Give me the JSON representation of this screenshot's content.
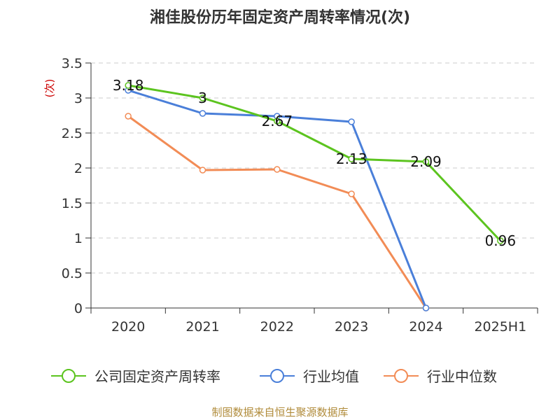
{
  "chart_data": {
    "type": "line",
    "title": "湘佳股份历年固定资产周转率情况(次)",
    "ylabel": "(次)",
    "xlabel": "",
    "categories": [
      "2020",
      "2021",
      "2022",
      "2023",
      "2024",
      "2025H1"
    ],
    "ylim": [
      0,
      3.5
    ],
    "yticks": [
      0,
      0.5,
      1,
      1.5,
      2,
      2.5,
      3,
      3.5
    ],
    "ytick_labels": [
      "0",
      "0.5",
      "1",
      "1.5",
      "2",
      "2.5",
      "3",
      "3.5"
    ],
    "grid": true,
    "legend_position": "bottom",
    "series": [
      {
        "name": "公司固定资产周转率",
        "color": "#5cc41f",
        "values": [
          3.18,
          3.0,
          2.67,
          2.13,
          2.09,
          0.96
        ],
        "show_labels": true
      },
      {
        "name": "行业均值",
        "color": "#4a7fd9",
        "values": [
          3.11,
          2.78,
          2.74,
          2.66,
          0.0,
          null
        ],
        "show_labels": false
      },
      {
        "name": "行业中位数",
        "color": "#f28c56",
        "values": [
          2.74,
          1.97,
          1.98,
          1.63,
          0.0,
          null
        ],
        "show_labels": false
      }
    ],
    "source": "制图数据来自恒生聚源数据库"
  }
}
